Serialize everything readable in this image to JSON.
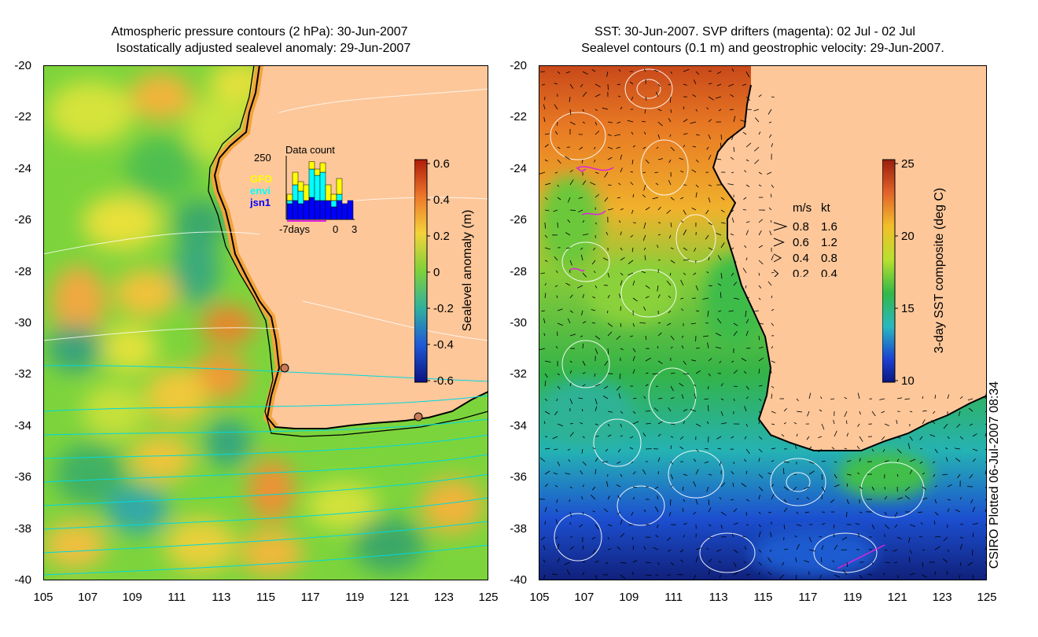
{
  "left_panel": {
    "title_line1": "Atmospheric pressure contours (2 hPa): 30-Jun-2007",
    "title_line2": "Isostatically adjusted sealevel anomaly: 29-Jun-2007",
    "colorbar": {
      "label": "Sealevel anomaly (m)",
      "ticks": [
        "0.6",
        "0.4",
        "0.2",
        "0",
        "-0.2",
        "-0.4",
        "-0.6"
      ],
      "range": [
        -0.6,
        0.6
      ]
    },
    "inset": {
      "title": "Data count",
      "ymax_label": "250",
      "legend": [
        {
          "label": "GFO",
          "color": "#ffff00"
        },
        {
          "label": "envi",
          "color": "#00ffff"
        },
        {
          "label": "jsn1",
          "color": "#0000ff"
        }
      ],
      "x_left": "-7days",
      "x_mid": "0",
      "x_right": "3",
      "bars": [
        {
          "jsn1": 0.25,
          "envi": 0.05,
          "gfo": 0.1
        },
        {
          "jsn1": 0.3,
          "envi": 0.25,
          "gfo": 0.2
        },
        {
          "jsn1": 0.25,
          "envi": 0.2,
          "gfo": 0.15
        },
        {
          "jsn1": 0.3,
          "envi": 0.0,
          "gfo": 0.25
        },
        {
          "jsn1": 0.35,
          "envi": 0.45,
          "gfo": 0.12
        },
        {
          "jsn1": 0.3,
          "envi": 0.4,
          "gfo": 0.1
        },
        {
          "jsn1": 0.3,
          "envi": 0.45,
          "gfo": 0.15
        },
        {
          "jsn1": 0.3,
          "envi": 0.0,
          "gfo": 0.25
        },
        {
          "jsn1": 0.2,
          "envi": 0.1,
          "gfo": 0.1
        },
        {
          "jsn1": 0.3,
          "envi": 0.1,
          "gfo": 0.25
        },
        {
          "jsn1": 0.25,
          "envi": 0.0,
          "gfo": 0.0
        },
        {
          "jsn1": 0.3,
          "envi": 0.0,
          "gfo": 0.0
        }
      ]
    }
  },
  "right_panel": {
    "title_line1": "SST: 30-Jun-2007. SVP drifters (magenta): 02 Jul - 02 Jul",
    "title_line2": "Sealevel contours (0.1 m) and geostrophic velocity: 29-Jun-2007.",
    "colorbar": {
      "label": "3-day SST composite (deg C)",
      "ticks": [
        "25",
        "20",
        "15",
        "10"
      ],
      "range": [
        10,
        26
      ]
    },
    "velocity_legend": {
      "header_ms": "m/s",
      "header_kt": "kt",
      "rows": [
        {
          "ms": "0.8",
          "kt": "1.6"
        },
        {
          "ms": "0.6",
          "kt": "1.2"
        },
        {
          "ms": "0.4",
          "kt": "0.8"
        },
        {
          "ms": "0.2",
          "kt": "0.4"
        }
      ]
    }
  },
  "axes": {
    "y_ticks": [
      "-20",
      "-22",
      "-24",
      "-26",
      "-28",
      "-30",
      "-32",
      "-34",
      "-36",
      "-38",
      "-40"
    ],
    "x_ticks": [
      "105",
      "107",
      "109",
      "111",
      "113",
      "115",
      "117",
      "119",
      "121",
      "123",
      "125"
    ]
  },
  "footer": {
    "plotted": "CSIRO Plotted 06-Jul-2007 08:34"
  },
  "colors": {
    "land": "#fdc79a",
    "coast": "#000000",
    "pressure_contour": "#00d8e0",
    "drifter": "#e020e0"
  }
}
